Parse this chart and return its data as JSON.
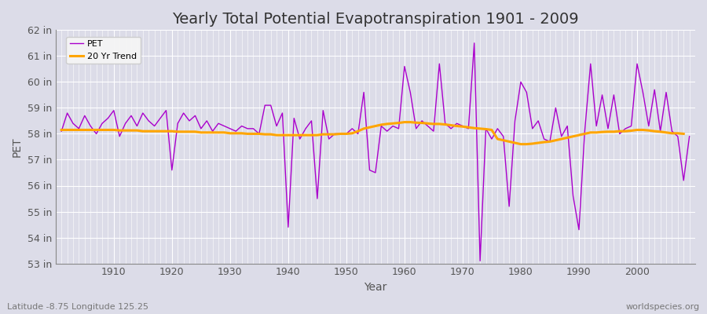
{
  "title": "Yearly Total Potential Evapotranspiration 1901 - 2009",
  "xlabel": "Year",
  "ylabel": "PET",
  "footnote_left": "Latitude -8.75 Longitude 125.25",
  "footnote_right": "worldspecies.org",
  "pet_color": "#AA00CC",
  "trend_color": "#FFA500",
  "background_color": "#DCDCE8",
  "grid_color": "#FFFFFF",
  "ylim": [
    53,
    62
  ],
  "yticks": [
    53,
    54,
    55,
    56,
    57,
    58,
    59,
    60,
    61,
    62
  ],
  "years": [
    1901,
    1902,
    1903,
    1904,
    1905,
    1906,
    1907,
    1908,
    1909,
    1910,
    1911,
    1912,
    1913,
    1914,
    1915,
    1916,
    1917,
    1918,
    1919,
    1920,
    1921,
    1922,
    1923,
    1924,
    1925,
    1926,
    1927,
    1928,
    1929,
    1930,
    1931,
    1932,
    1933,
    1934,
    1935,
    1936,
    1937,
    1938,
    1939,
    1940,
    1941,
    1942,
    1943,
    1944,
    1945,
    1946,
    1947,
    1948,
    1949,
    1950,
    1951,
    1952,
    1953,
    1954,
    1955,
    1956,
    1957,
    1958,
    1959,
    1960,
    1961,
    1962,
    1963,
    1964,
    1965,
    1966,
    1967,
    1968,
    1969,
    1970,
    1971,
    1972,
    1973,
    1974,
    1975,
    1976,
    1977,
    1978,
    1979,
    1980,
    1981,
    1982,
    1983,
    1984,
    1985,
    1986,
    1987,
    1988,
    1989,
    1990,
    1991,
    1992,
    1993,
    1994,
    1995,
    1996,
    1997,
    1998,
    1999,
    2000,
    2001,
    2002,
    2003,
    2004,
    2005,
    2006,
    2007,
    2008,
    2009
  ],
  "pet_values": [
    58.1,
    58.8,
    58.4,
    58.2,
    58.7,
    58.3,
    58.0,
    58.4,
    58.6,
    58.9,
    57.9,
    58.4,
    58.7,
    58.3,
    58.8,
    58.5,
    58.3,
    58.6,
    58.9,
    56.6,
    58.4,
    58.8,
    58.5,
    58.7,
    58.2,
    58.5,
    58.1,
    58.4,
    58.3,
    58.2,
    58.1,
    58.3,
    58.2,
    58.2,
    58.0,
    59.1,
    59.1,
    58.3,
    58.8,
    54.4,
    58.6,
    57.8,
    58.2,
    58.5,
    55.5,
    58.9,
    57.8,
    58.0,
    58.0,
    58.0,
    58.2,
    58.0,
    59.6,
    56.6,
    56.5,
    58.3,
    58.1,
    58.3,
    58.2,
    60.6,
    59.6,
    58.2,
    58.5,
    58.3,
    58.1,
    60.7,
    58.4,
    58.2,
    58.4,
    58.3,
    58.2,
    61.5,
    53.1,
    58.2,
    57.8,
    58.2,
    57.9,
    55.2,
    58.5,
    60.0,
    59.6,
    58.2,
    58.5,
    57.8,
    57.7,
    59.0,
    57.9,
    58.3,
    55.6,
    54.3,
    58.1,
    60.7,
    58.3,
    59.5,
    58.2,
    59.5,
    58.0,
    58.2,
    58.3,
    60.7,
    59.6,
    58.3,
    59.7,
    58.1,
    59.6,
    58.1,
    57.9,
    56.2,
    57.9
  ],
  "trend_values": [
    58.15,
    58.15,
    58.15,
    58.15,
    58.15,
    58.15,
    58.15,
    58.15,
    58.15,
    58.15,
    58.13,
    58.13,
    58.13,
    58.13,
    58.1,
    58.1,
    58.1,
    58.1,
    58.1,
    58.1,
    58.08,
    58.08,
    58.08,
    58.08,
    58.05,
    58.05,
    58.05,
    58.05,
    58.05,
    58.02,
    58.02,
    58.02,
    58.0,
    58.0,
    58.0,
    57.98,
    57.98,
    57.95,
    57.95,
    57.95,
    57.95,
    57.95,
    57.95,
    57.95,
    57.95,
    57.98,
    57.98,
    57.98,
    58.0,
    58.0,
    58.02,
    58.1,
    58.2,
    58.25,
    58.3,
    58.35,
    58.38,
    58.4,
    58.42,
    58.45,
    58.45,
    58.43,
    58.42,
    58.4,
    58.38,
    58.38,
    58.36,
    58.33,
    58.3,
    58.28,
    58.25,
    58.22,
    58.2,
    58.18,
    58.15,
    57.8,
    57.75,
    57.7,
    57.65,
    57.6,
    57.6,
    57.62,
    57.65,
    57.68,
    57.7,
    57.75,
    57.8,
    57.85,
    57.9,
    57.95,
    58.0,
    58.05,
    58.05,
    58.07,
    58.08,
    58.08,
    58.1,
    58.1,
    58.12,
    58.15,
    58.15,
    58.13,
    58.1,
    58.08,
    58.05,
    58.02,
    58.02,
    58.0,
    null
  ],
  "xlim_left": 1900,
  "xlim_right": 2010,
  "xticks": [
    1910,
    1920,
    1930,
    1940,
    1950,
    1960,
    1970,
    1980,
    1990,
    2000
  ],
  "title_fontsize": 14,
  "axis_label_fontsize": 10,
  "tick_fontsize": 9,
  "footnote_fontsize": 8
}
